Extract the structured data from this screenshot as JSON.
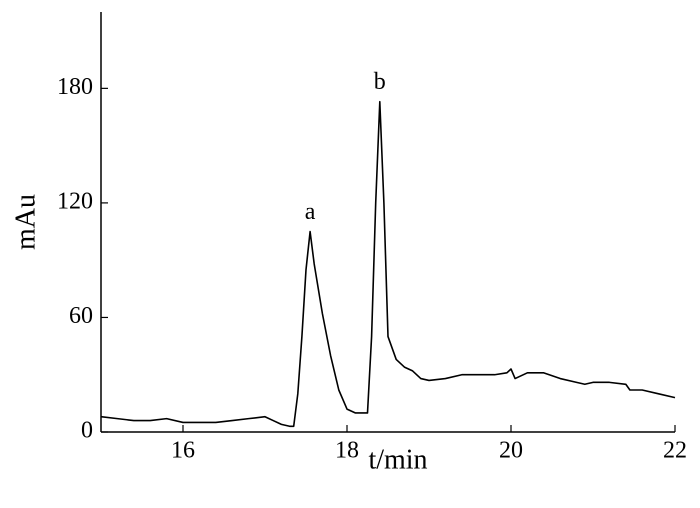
{
  "chart_data": {
    "type": "line",
    "x_label": "t/min",
    "y_label": "mAu",
    "x": [
      15.0,
      15.2,
      15.4,
      15.6,
      15.8,
      16.0,
      16.2,
      16.4,
      16.6,
      16.8,
      17.0,
      17.1,
      17.2,
      17.3,
      17.35,
      17.4,
      17.45,
      17.5,
      17.55,
      17.6,
      17.7,
      17.8,
      17.9,
      18.0,
      18.1,
      18.2,
      18.25,
      18.3,
      18.35,
      18.4,
      18.45,
      18.5,
      18.6,
      18.7,
      18.8,
      18.9,
      19.0,
      19.2,
      19.4,
      19.6,
      19.8,
      19.95,
      20.0,
      20.05,
      20.2,
      20.4,
      20.6,
      20.8,
      20.9,
      21.0,
      21.2,
      21.4,
      21.45,
      21.5,
      21.6,
      21.8,
      22.0
    ],
    "series": [
      {
        "name": "mAu",
        "color": "#000000",
        "values": [
          8,
          7,
          6,
          6,
          7,
          5,
          5,
          5,
          6,
          7,
          8,
          6,
          4,
          3,
          3,
          20,
          50,
          85,
          105,
          88,
          62,
          40,
          22,
          12,
          10,
          10,
          10,
          50,
          120,
          173,
          120,
          50,
          38,
          34,
          32,
          28,
          27,
          28,
          30,
          30,
          30,
          31,
          33,
          28,
          31,
          31,
          28,
          26,
          25,
          26,
          26,
          25,
          22,
          22,
          22,
          20,
          18
        ]
      }
    ],
    "annotations": [
      {
        "text": "a",
        "x": 17.55,
        "y": 105
      },
      {
        "text": "b",
        "x": 18.4,
        "y": 173
      }
    ],
    "xlim": [
      15,
      22
    ],
    "xticks": [
      16,
      18,
      20,
      22
    ],
    "ylim": [
      0,
      220
    ],
    "yticks": [
      0,
      60,
      120,
      180
    ],
    "grid": false
  }
}
